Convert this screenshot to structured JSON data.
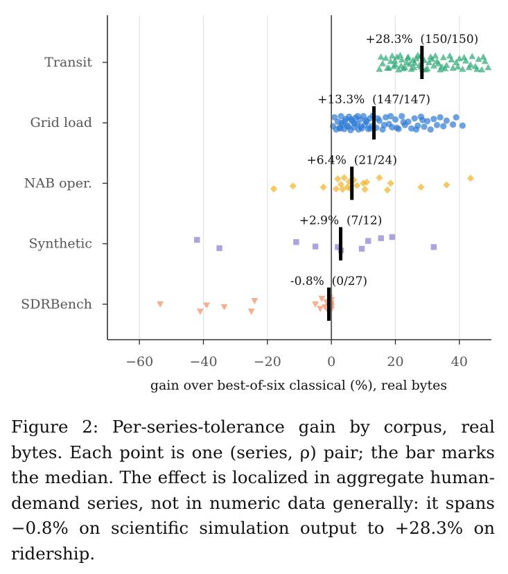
{
  "chart_data": {
    "type": "scatter",
    "categories": [
      "Transit",
      "Grid load",
      "NAB oper.",
      "Synthetic",
      "SDRBench"
    ],
    "xlabel": "gain over best-of-six classical (%), real bytes",
    "xlim": [
      -70,
      50
    ],
    "xticks": [
      -60,
      -40,
      -20,
      0,
      20,
      40
    ],
    "xtick_labels": [
      "−60",
      "−40",
      "−20",
      "0",
      "20",
      "40"
    ],
    "grid": "vertical",
    "series": [
      {
        "name": "Transit",
        "marker": "triangle-up",
        "color": "#2ca876",
        "median": 28.3,
        "annotation": "+28.3%  (150/150)",
        "points": [
          [
            15,
            0.12
          ],
          [
            17,
            -0.08
          ],
          [
            18,
            0.1
          ],
          [
            19,
            -0.12
          ],
          [
            20,
            0.04
          ],
          [
            21,
            0.13
          ],
          [
            22,
            -0.05
          ],
          [
            23,
            0.09
          ],
          [
            24,
            -0.1
          ],
          [
            25,
            0.12
          ],
          [
            26,
            0.01
          ],
          [
            27,
            -0.13
          ],
          [
            28,
            0.08
          ],
          [
            29,
            -0.04
          ],
          [
            30,
            0.11
          ],
          [
            31,
            -0.1
          ],
          [
            32,
            0.06
          ],
          [
            33,
            -0.02
          ],
          [
            34,
            0.13
          ],
          [
            35,
            -0.09
          ],
          [
            36,
            0.05
          ],
          [
            37,
            -0.12
          ],
          [
            38,
            0.1
          ],
          [
            39,
            0.0
          ],
          [
            40,
            -0.07
          ],
          [
            41,
            0.12
          ],
          [
            42,
            -0.03
          ],
          [
            43,
            0.09
          ],
          [
            44,
            -0.11
          ],
          [
            45,
            0.07
          ],
          [
            46,
            -0.06
          ],
          [
            47,
            0.13
          ],
          [
            48,
            -0.02
          ],
          [
            49,
            0.09
          ],
          [
            16,
            0.02
          ],
          [
            18.5,
            -0.02
          ],
          [
            20.5,
            -0.1
          ],
          [
            22.5,
            0.11
          ],
          [
            24.5,
            0.03
          ],
          [
            26.5,
            -0.07
          ],
          [
            28.5,
            0.12
          ],
          [
            30.5,
            0.0
          ],
          [
            32.5,
            -0.12
          ],
          [
            34.5,
            0.08
          ],
          [
            19.5,
            0.07
          ],
          [
            21.5,
            -0.13
          ],
          [
            23.5,
            0.0
          ],
          [
            25.5,
            -0.04
          ],
          [
            27.5,
            0.05
          ],
          [
            29.5,
            0.13
          ],
          [
            31.5,
            -0.06
          ],
          [
            33.5,
            0.02
          ],
          [
            35.5,
            0.11
          ],
          [
            37.5,
            -0.05
          ],
          [
            39.5,
            0.08
          ],
          [
            41.5,
            -0.09
          ],
          [
            43.5,
            0.04
          ],
          [
            45.5,
            0.12
          ],
          [
            47.5,
            -0.1
          ],
          [
            15.5,
            -0.1
          ],
          [
            17.5,
            0.1
          ],
          [
            19.8,
            -0.03
          ],
          [
            21.8,
            0.06
          ],
          [
            23.8,
            -0.08
          ],
          [
            25.8,
            0.09
          ],
          [
            27.8,
            -0.11
          ]
        ]
      },
      {
        "name": "Grid load",
        "marker": "circle",
        "color": "#2f7ad6",
        "median": 13.3,
        "annotation": "+13.3%  (147/147)",
        "points": [
          [
            0.5,
            0.06
          ],
          [
            1,
            -0.1
          ],
          [
            1.5,
            0.12
          ],
          [
            2,
            -0.02
          ],
          [
            2.5,
            0.09
          ],
          [
            3,
            -0.12
          ],
          [
            3.5,
            0.03
          ],
          [
            4,
            0.11
          ],
          [
            4.5,
            -0.07
          ],
          [
            5,
            0.05
          ],
          [
            5.5,
            -0.11
          ],
          [
            6,
            0.13
          ],
          [
            6.5,
            -0.03
          ],
          [
            7,
            0.08
          ],
          [
            7.5,
            -0.09
          ],
          [
            8,
            0.02
          ],
          [
            8.5,
            0.12
          ],
          [
            9,
            -0.06
          ],
          [
            9.5,
            0.1
          ],
          [
            10,
            -0.12
          ],
          [
            10.5,
            0.04
          ],
          [
            11,
            -0.02
          ],
          [
            11.5,
            0.11
          ],
          [
            12,
            -0.08
          ],
          [
            12.5,
            0.06
          ],
          [
            13,
            -0.13
          ],
          [
            14,
            0.09
          ],
          [
            15,
            -0.04
          ],
          [
            16,
            0.12
          ],
          [
            17,
            -0.1
          ],
          [
            18,
            0.02
          ],
          [
            19,
            0.08
          ],
          [
            20,
            -0.06
          ],
          [
            21,
            0.11
          ],
          [
            22,
            -0.12
          ],
          [
            23,
            0.04
          ],
          [
            24,
            -0.02
          ],
          [
            25,
            0.1
          ],
          [
            26,
            -0.08
          ],
          [
            27,
            0.05
          ],
          [
            28,
            -0.11
          ],
          [
            29,
            0.07
          ],
          [
            30,
            -0.03
          ],
          [
            31,
            0.12
          ],
          [
            32,
            -0.07
          ],
          [
            33,
            0.04
          ],
          [
            34,
            -0.1
          ],
          [
            35,
            0.06
          ],
          [
            36,
            -0.04
          ],
          [
            38,
            0.03
          ],
          [
            39,
            -0.1
          ],
          [
            41,
            0.05
          ],
          [
            3.2,
            0.0
          ],
          [
            5.2,
            0.07
          ],
          [
            6.2,
            -0.06
          ],
          [
            7.2,
            0.01
          ],
          [
            8.2,
            -0.12
          ],
          [
            9.2,
            0.06
          ],
          [
            4.2,
            -0.03
          ],
          [
            2.8,
            0.1
          ],
          [
            10.8,
            -0.04
          ],
          [
            12.2,
            0.1
          ],
          [
            14.5,
            -0.08
          ],
          [
            16.5,
            0.04
          ],
          [
            18.5,
            -0.12
          ],
          [
            20.5,
            0.09
          ],
          [
            22.5,
            -0.01
          ],
          [
            26.5,
            0.12
          ],
          [
            28.5,
            -0.05
          ]
        ]
      },
      {
        "name": "NAB oper.",
        "marker": "diamond",
        "color": "#f0b429",
        "median": 6.4,
        "annotation": "+6.4%  (21/24)",
        "points": [
          [
            -18,
            0.1
          ],
          [
            -12,
            0.05
          ],
          [
            -2.5,
            0.07
          ],
          [
            1.5,
            0.1
          ],
          [
            2,
            -0.08
          ],
          [
            3,
            0.02
          ],
          [
            3.5,
            0.11
          ],
          [
            4,
            -0.1
          ],
          [
            5,
            0.07
          ],
          [
            5.5,
            -0.03
          ],
          [
            6,
            0.1
          ],
          [
            7,
            -0.06
          ],
          [
            8,
            0.04
          ],
          [
            10,
            0.0
          ],
          [
            10.5,
            0.11
          ],
          [
            11,
            -0.02
          ],
          [
            15,
            -0.1
          ],
          [
            17.5,
            0.12
          ],
          [
            18.5,
            0.0
          ],
          [
            28,
            0.07
          ],
          [
            36,
            0.03
          ],
          [
            43.5,
            -0.09
          ]
        ]
      },
      {
        "name": "Synthetic",
        "marker": "square",
        "color": "#8a7fc9",
        "median": 2.9,
        "annotation": "+2.9%  (7/12)",
        "points": [
          [
            -42,
            -0.07
          ],
          [
            -35,
            0.08
          ],
          [
            -11,
            -0.03
          ],
          [
            -5,
            0.05
          ],
          [
            2,
            0.06
          ],
          [
            3,
            0.12
          ],
          [
            9.5,
            0.09
          ],
          [
            11.5,
            -0.05
          ],
          [
            15.5,
            -0.1
          ],
          [
            19,
            -0.12
          ],
          [
            32,
            0.06
          ]
        ]
      },
      {
        "name": "SDRBench",
        "marker": "triangle-down",
        "color": "#ee8f63",
        "median": -0.8,
        "annotation": "-0.8%  (0/27)",
        "points": [
          [
            -53.5,
            0.0
          ],
          [
            -41,
            0.13
          ],
          [
            -39,
            0.02
          ],
          [
            -33.5,
            0.05
          ],
          [
            -25,
            0.13
          ],
          [
            -24,
            -0.06
          ],
          [
            -5,
            0.0
          ],
          [
            -3.5,
            0.08
          ],
          [
            -3,
            -0.1
          ],
          [
            -2,
            0.05
          ],
          [
            -1.5,
            -0.04
          ],
          [
            -1,
            0.12
          ],
          [
            -0.5,
            -0.12
          ],
          [
            -0.2,
            0.02
          ],
          [
            0,
            0.09
          ],
          [
            0,
            -0.08
          ],
          [
            0,
            0.04
          ],
          [
            0,
            -0.02
          ]
        ]
      }
    ]
  },
  "caption": "Figure 2: Per-series-tolerance gain by corpus, real bytes. Each point is one (series, ρ) pair; the bar marks the median. The effect is localized in aggregate human-demand series, not in numeric data generally: it spans −0.8% on scientific simulation output to +28.3% on ridership."
}
